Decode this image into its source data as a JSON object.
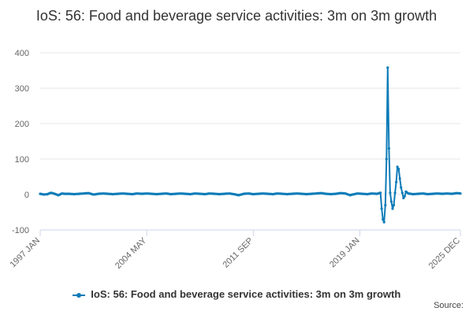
{
  "chart_data": {
    "type": "line",
    "title": "IoS: 56: Food and beverage service activities: 3m on 3m growth",
    "xlabel": "",
    "ylabel": "",
    "ylim": [
      -100,
      400
    ],
    "yticks": [
      -100,
      0,
      100,
      200,
      300,
      400
    ],
    "x_tick_labels": [
      "1997 JAN",
      "2004 MAY",
      "2011 SEP",
      "2019 JAN",
      "2025 DEC"
    ],
    "x_tick_indices": [
      0,
      88,
      176,
      264,
      347
    ],
    "n_points": 348,
    "series": [
      {
        "name": "IoS: 56: Food and beverage service activities: 3m on 3m growth",
        "color": "#0e7cb8",
        "approx_values_by_index": [
          [
            0,
            2
          ],
          [
            3,
            0
          ],
          [
            6,
            1
          ],
          [
            9,
            5
          ],
          [
            12,
            2
          ],
          [
            15,
            -2
          ],
          [
            18,
            3
          ],
          [
            20,
            2
          ],
          [
            24,
            2
          ],
          [
            28,
            1
          ],
          [
            32,
            2
          ],
          [
            36,
            3
          ],
          [
            40,
            4
          ],
          [
            44,
            0
          ],
          [
            48,
            2
          ],
          [
            52,
            3
          ],
          [
            56,
            2
          ],
          [
            60,
            1
          ],
          [
            64,
            2
          ],
          [
            68,
            3
          ],
          [
            72,
            2
          ],
          [
            76,
            1
          ],
          [
            80,
            3
          ],
          [
            84,
            2
          ],
          [
            88,
            3
          ],
          [
            92,
            2
          ],
          [
            96,
            1
          ],
          [
            100,
            2
          ],
          [
            104,
            3
          ],
          [
            108,
            1
          ],
          [
            112,
            2
          ],
          [
            116,
            3
          ],
          [
            120,
            2
          ],
          [
            124,
            1
          ],
          [
            128,
            3
          ],
          [
            132,
            2
          ],
          [
            136,
            1
          ],
          [
            140,
            3
          ],
          [
            144,
            2
          ],
          [
            148,
            1
          ],
          [
            152,
            2
          ],
          [
            156,
            3
          ],
          [
            160,
            1
          ],
          [
            164,
            -2
          ],
          [
            168,
            2
          ],
          [
            172,
            3
          ],
          [
            176,
            1
          ],
          [
            180,
            2
          ],
          [
            184,
            3
          ],
          [
            188,
            2
          ],
          [
            192,
            1
          ],
          [
            196,
            3
          ],
          [
            200,
            2
          ],
          [
            204,
            1
          ],
          [
            208,
            2
          ],
          [
            212,
            3
          ],
          [
            216,
            2
          ],
          [
            220,
            1
          ],
          [
            224,
            2
          ],
          [
            228,
            3
          ],
          [
            232,
            4
          ],
          [
            236,
            2
          ],
          [
            240,
            1
          ],
          [
            244,
            2
          ],
          [
            248,
            4
          ],
          [
            252,
            3
          ],
          [
            256,
            -2
          ],
          [
            258,
            0
          ],
          [
            262,
            3
          ],
          [
            266,
            2
          ],
          [
            270,
            1
          ],
          [
            274,
            3
          ],
          [
            278,
            2
          ],
          [
            281,
            5
          ],
          [
            282,
            -40
          ],
          [
            283,
            -70
          ],
          [
            284,
            -78
          ],
          [
            285,
            -30
          ],
          [
            286,
            100
          ],
          [
            287,
            358
          ],
          [
            288,
            130
          ],
          [
            289,
            5
          ],
          [
            290,
            -20
          ],
          [
            291,
            -40
          ],
          [
            292,
            -30
          ],
          [
            293,
            5
          ],
          [
            294,
            35
          ],
          [
            295,
            78
          ],
          [
            296,
            72
          ],
          [
            297,
            45
          ],
          [
            298,
            20
          ],
          [
            299,
            5
          ],
          [
            300,
            -10
          ],
          [
            301,
            -5
          ],
          [
            302,
            8
          ],
          [
            304,
            3
          ],
          [
            308,
            1
          ],
          [
            312,
            2
          ],
          [
            316,
            3
          ],
          [
            320,
            1
          ],
          [
            324,
            2
          ],
          [
            328,
            3
          ],
          [
            332,
            2
          ],
          [
            336,
            3
          ],
          [
            340,
            2
          ],
          [
            344,
            4
          ],
          [
            347,
            3
          ]
        ]
      }
    ],
    "legend": "bottom",
    "source_label": "Source:"
  }
}
